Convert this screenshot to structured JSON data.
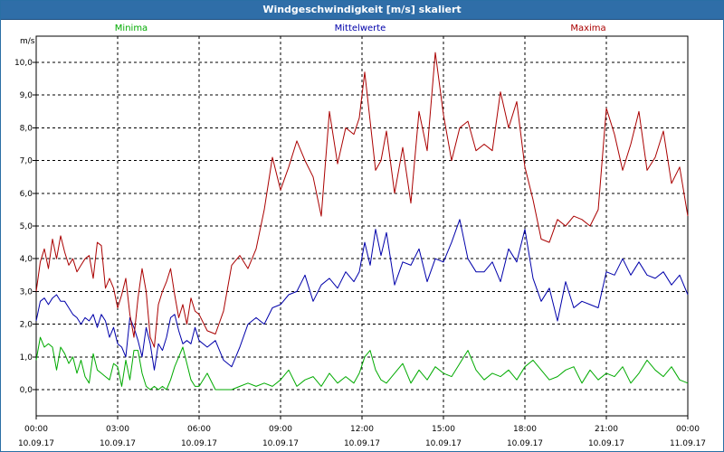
{
  "window": {
    "title": "Windgeschwindigkeit [m/s] skaliert"
  },
  "chart_data": {
    "type": "line",
    "title": "Windgeschwindigkeit [m/s] skaliert",
    "ylabel": "m/s",
    "xlabel": "",
    "ylim": [
      -0.8,
      10.8
    ],
    "xlim": [
      0,
      24
    ],
    "grid": true,
    "legend_placement": "top",
    "y_ticks": [
      "0,0",
      "1,0",
      "2,0",
      "3,0",
      "4,0",
      "5,0",
      "6,0",
      "7,0",
      "8,0",
      "9,0",
      "10,0"
    ],
    "y_tick_values": [
      0,
      1,
      2,
      3,
      4,
      5,
      6,
      7,
      8,
      9,
      10
    ],
    "x_ticks": [
      {
        "time": "00:00",
        "date": "10.09.17"
      },
      {
        "time": "03:00",
        "date": "10.09.17"
      },
      {
        "time": "06:00",
        "date": "10.09.17"
      },
      {
        "time": "09:00",
        "date": "10.09.17"
      },
      {
        "time": "12:00",
        "date": "10.09.17"
      },
      {
        "time": "15:00",
        "date": "10.09.17"
      },
      {
        "time": "18:00",
        "date": "10.09.17"
      },
      {
        "time": "21:00",
        "date": "10.09.17"
      },
      {
        "time": "00:00",
        "date": "11.09.17"
      }
    ],
    "series": [
      {
        "name": "Minima",
        "color": "#00aa00",
        "x": [
          0.0,
          0.15,
          0.3,
          0.45,
          0.6,
          0.75,
          0.9,
          1.05,
          1.2,
          1.35,
          1.5,
          1.65,
          1.8,
          1.95,
          2.1,
          2.25,
          2.4,
          2.55,
          2.7,
          2.85,
          3.0,
          3.15,
          3.3,
          3.45,
          3.6,
          3.75,
          3.9,
          4.05,
          4.2,
          4.35,
          4.5,
          4.65,
          4.8,
          4.95,
          5.1,
          5.25,
          5.4,
          5.55,
          5.7,
          5.85,
          6.0,
          6.3,
          6.6,
          6.9,
          7.2,
          7.5,
          7.8,
          8.1,
          8.4,
          8.7,
          9.0,
          9.3,
          9.6,
          9.9,
          10.2,
          10.5,
          10.8,
          11.1,
          11.4,
          11.7,
          11.9,
          12.1,
          12.3,
          12.5,
          12.7,
          12.9,
          13.2,
          13.5,
          13.8,
          14.1,
          14.4,
          14.7,
          15.0,
          15.3,
          15.6,
          15.9,
          16.2,
          16.5,
          16.8,
          17.1,
          17.4,
          17.7,
          18.0,
          18.3,
          18.6,
          18.9,
          19.2,
          19.5,
          19.8,
          20.1,
          20.4,
          20.7,
          21.0,
          21.3,
          21.6,
          21.9,
          22.2,
          22.5,
          22.8,
          23.1,
          23.4,
          23.7,
          24.0
        ],
        "values": [
          0.9,
          1.6,
          1.3,
          1.4,
          1.3,
          0.6,
          1.3,
          1.1,
          0.8,
          1.0,
          0.5,
          0.9,
          0.4,
          0.2,
          1.1,
          0.6,
          0.5,
          0.4,
          0.3,
          0.8,
          0.7,
          0.1,
          0.9,
          0.3,
          1.2,
          1.2,
          0.5,
          0.1,
          0.0,
          0.1,
          0.0,
          0.1,
          0.0,
          0.3,
          0.7,
          1.0,
          1.3,
          0.8,
          0.3,
          0.1,
          0.1,
          0.5,
          0.0,
          0.0,
          0.0,
          0.1,
          0.2,
          0.1,
          0.2,
          0.1,
          0.3,
          0.6,
          0.1,
          0.3,
          0.4,
          0.1,
          0.5,
          0.2,
          0.4,
          0.2,
          0.5,
          1.0,
          1.2,
          0.6,
          0.3,
          0.2,
          0.5,
          0.8,
          0.2,
          0.6,
          0.3,
          0.7,
          0.5,
          0.4,
          0.8,
          1.2,
          0.6,
          0.3,
          0.5,
          0.4,
          0.6,
          0.3,
          0.7,
          0.9,
          0.6,
          0.3,
          0.4,
          0.6,
          0.7,
          0.2,
          0.6,
          0.3,
          0.5,
          0.4,
          0.7,
          0.2,
          0.5,
          0.9,
          0.6,
          0.4,
          0.7,
          0.3,
          0.2
        ]
      },
      {
        "name": "Mittelwerte",
        "color": "#0000aa",
        "x": [
          0.0,
          0.15,
          0.3,
          0.45,
          0.6,
          0.75,
          0.9,
          1.05,
          1.2,
          1.35,
          1.5,
          1.65,
          1.8,
          1.95,
          2.1,
          2.25,
          2.4,
          2.55,
          2.7,
          2.85,
          3.0,
          3.15,
          3.3,
          3.45,
          3.6,
          3.75,
          3.9,
          4.05,
          4.2,
          4.35,
          4.5,
          4.65,
          4.8,
          4.95,
          5.1,
          5.25,
          5.4,
          5.55,
          5.7,
          5.85,
          6.0,
          6.3,
          6.6,
          6.9,
          7.2,
          7.5,
          7.8,
          8.1,
          8.4,
          8.7,
          9.0,
          9.3,
          9.6,
          9.9,
          10.2,
          10.5,
          10.8,
          11.1,
          11.4,
          11.7,
          11.9,
          12.1,
          12.3,
          12.5,
          12.7,
          12.9,
          13.2,
          13.5,
          13.8,
          14.1,
          14.4,
          14.7,
          15.0,
          15.3,
          15.6,
          15.9,
          16.2,
          16.5,
          16.8,
          17.1,
          17.4,
          17.7,
          18.0,
          18.3,
          18.6,
          18.9,
          19.2,
          19.5,
          19.8,
          20.1,
          20.4,
          20.7,
          21.0,
          21.3,
          21.6,
          21.9,
          22.2,
          22.5,
          22.8,
          23.1,
          23.4,
          23.7,
          24.0
        ],
        "values": [
          2.1,
          2.7,
          2.8,
          2.6,
          2.8,
          2.9,
          2.7,
          2.7,
          2.5,
          2.3,
          2.2,
          2.0,
          2.2,
          2.1,
          2.3,
          1.9,
          2.3,
          2.1,
          1.6,
          1.9,
          1.4,
          1.3,
          1.0,
          2.2,
          1.9,
          1.5,
          1.0,
          1.9,
          1.4,
          0.6,
          1.4,
          1.2,
          1.6,
          2.2,
          2.3,
          1.8,
          1.4,
          1.5,
          1.4,
          1.9,
          1.5,
          1.3,
          1.5,
          0.9,
          0.7,
          1.3,
          2.0,
          2.2,
          2.0,
          2.5,
          2.6,
          2.9,
          3.0,
          3.5,
          2.7,
          3.2,
          3.4,
          3.1,
          3.6,
          3.3,
          3.6,
          4.5,
          3.8,
          4.9,
          4.1,
          4.8,
          3.2,
          3.9,
          3.8,
          4.3,
          3.3,
          4.0,
          3.9,
          4.5,
          5.2,
          4.0,
          3.6,
          3.6,
          3.9,
          3.3,
          4.3,
          3.9,
          4.9,
          3.4,
          2.7,
          3.1,
          2.1,
          3.3,
          2.5,
          2.7,
          2.6,
          2.5,
          3.6,
          3.5,
          4.0,
          3.5,
          3.9,
          3.5,
          3.4,
          3.6,
          3.2,
          3.5,
          2.9
        ]
      },
      {
        "name": "Maxima",
        "color": "#aa0000",
        "x": [
          0.0,
          0.15,
          0.3,
          0.45,
          0.6,
          0.75,
          0.9,
          1.05,
          1.2,
          1.35,
          1.5,
          1.65,
          1.8,
          1.95,
          2.1,
          2.25,
          2.4,
          2.55,
          2.7,
          2.85,
          3.0,
          3.15,
          3.3,
          3.45,
          3.6,
          3.75,
          3.9,
          4.05,
          4.2,
          4.35,
          4.5,
          4.65,
          4.8,
          4.95,
          5.1,
          5.25,
          5.4,
          5.55,
          5.7,
          5.85,
          6.0,
          6.3,
          6.6,
          6.9,
          7.2,
          7.5,
          7.8,
          8.1,
          8.4,
          8.7,
          9.0,
          9.3,
          9.6,
          9.9,
          10.2,
          10.5,
          10.8,
          11.1,
          11.4,
          11.7,
          11.9,
          12.1,
          12.3,
          12.5,
          12.7,
          12.9,
          13.2,
          13.5,
          13.8,
          14.1,
          14.4,
          14.7,
          15.0,
          15.3,
          15.6,
          15.9,
          16.2,
          16.5,
          16.8,
          17.1,
          17.4,
          17.7,
          18.0,
          18.3,
          18.6,
          18.9,
          19.2,
          19.5,
          19.8,
          20.1,
          20.4,
          20.7,
          21.0,
          21.3,
          21.6,
          21.9,
          22.2,
          22.5,
          22.8,
          23.1,
          23.4,
          23.7,
          24.0
        ],
        "values": [
          3.0,
          3.9,
          4.3,
          3.7,
          4.6,
          4.0,
          4.7,
          4.2,
          3.8,
          4.0,
          3.6,
          3.8,
          4.0,
          4.1,
          3.4,
          4.5,
          4.4,
          3.1,
          3.4,
          3.1,
          2.5,
          2.9,
          3.4,
          2.3,
          1.6,
          2.8,
          3.7,
          3.0,
          1.6,
          1.3,
          2.6,
          3.0,
          3.3,
          3.7,
          2.9,
          2.2,
          2.6,
          2.0,
          2.8,
          2.4,
          2.3,
          1.8,
          1.7,
          2.4,
          3.8,
          4.1,
          3.7,
          4.3,
          5.5,
          7.1,
          6.1,
          6.8,
          7.6,
          7.0,
          6.5,
          5.3,
          8.5,
          6.9,
          8.0,
          7.8,
          8.3,
          9.7,
          8.2,
          6.7,
          7.0,
          7.9,
          6.0,
          7.4,
          5.7,
          8.5,
          7.3,
          10.3,
          8.4,
          7.0,
          8.0,
          8.2,
          7.3,
          7.5,
          7.3,
          9.1,
          8.0,
          8.8,
          6.8,
          5.8,
          4.6,
          4.5,
          5.2,
          5.0,
          5.3,
          5.2,
          5.0,
          5.5,
          8.6,
          7.8,
          6.7,
          7.5,
          8.5,
          6.7,
          7.1,
          7.9,
          6.3,
          6.8,
          5.3
        ]
      }
    ]
  }
}
